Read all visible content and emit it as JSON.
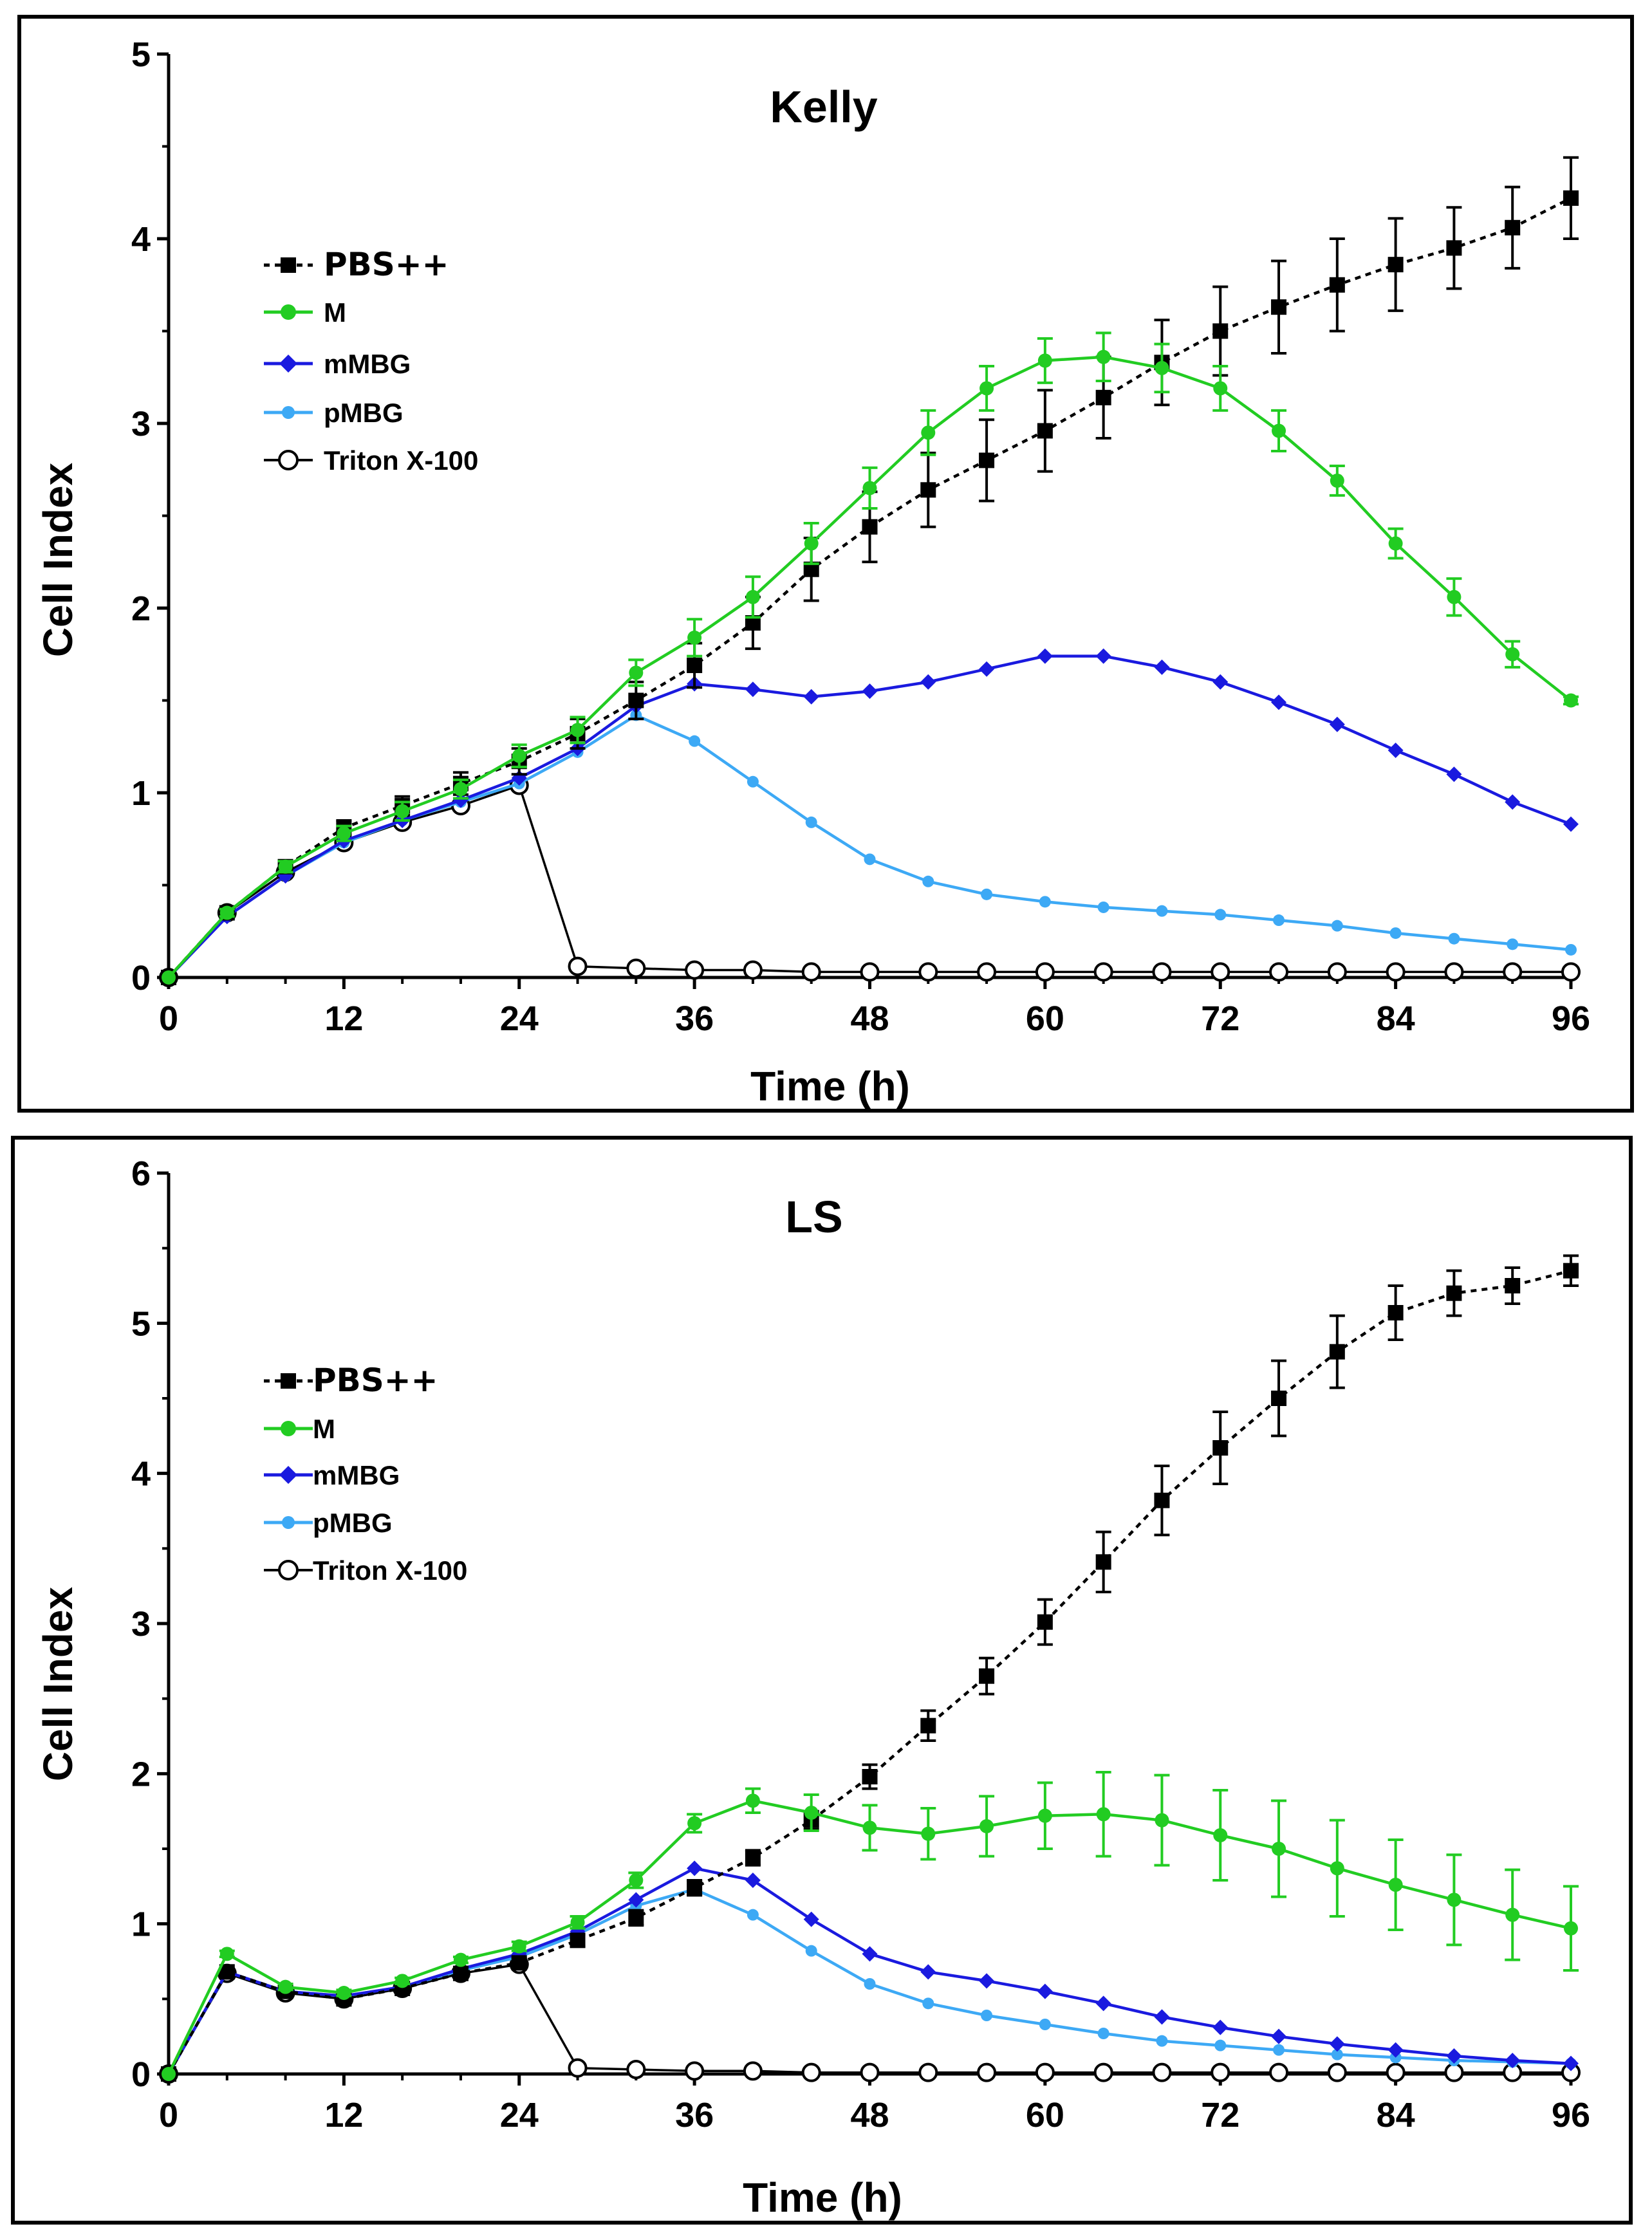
{
  "colors": {
    "PBS": "#000000",
    "M": "#22cc22",
    "mMBG": "#1a1adf",
    "pMBG": "#3da9f5",
    "Triton": "#000000"
  },
  "chart_data": [
    {
      "type": "line",
      "title": "Kelly",
      "xlabel": "Time (h)",
      "ylabel": "Cell Index",
      "xlim": [
        0,
        96
      ],
      "ylim": [
        0,
        5
      ],
      "xticks": [
        0,
        12,
        24,
        36,
        48,
        60,
        72,
        84,
        96
      ],
      "yticks": [
        0,
        1,
        2,
        3,
        4,
        5
      ],
      "legend_position": "upper-left",
      "x": [
        0,
        4,
        8,
        12,
        16,
        20,
        24,
        28,
        32,
        36,
        40,
        44,
        48,
        52,
        56,
        60,
        64,
        68,
        72,
        76,
        80,
        84,
        88,
        92,
        96
      ],
      "series": [
        {
          "name": "PBS++",
          "key": "PBS",
          "marker": "square",
          "dash": true,
          "values": [
            0,
            0.35,
            0.6,
            0.81,
            0.93,
            1.05,
            1.17,
            1.32,
            1.5,
            1.69,
            1.92,
            2.21,
            2.44,
            2.64,
            2.8,
            2.96,
            3.14,
            3.33,
            3.5,
            3.63,
            3.75,
            3.86,
            3.95,
            4.06,
            4.22
          ],
          "errors": [
            0,
            0.02,
            0.03,
            0.04,
            0.05,
            0.06,
            0.07,
            0.08,
            0.1,
            0.12,
            0.14,
            0.17,
            0.19,
            0.2,
            0.22,
            0.22,
            0.22,
            0.23,
            0.24,
            0.25,
            0.25,
            0.25,
            0.22,
            0.22,
            0.22
          ]
        },
        {
          "name": "M",
          "key": "M",
          "marker": "circle",
          "values": [
            0,
            0.35,
            0.6,
            0.78,
            0.9,
            1.02,
            1.2,
            1.34,
            1.65,
            1.84,
            2.06,
            2.35,
            2.65,
            2.95,
            3.19,
            3.34,
            3.36,
            3.3,
            3.19,
            2.96,
            2.69,
            2.35,
            2.06,
            1.75,
            1.5
          ],
          "errors": [
            0,
            0.02,
            0.03,
            0.04,
            0.05,
            0.05,
            0.06,
            0.07,
            0.07,
            0.1,
            0.11,
            0.11,
            0.11,
            0.12,
            0.12,
            0.12,
            0.13,
            0.13,
            0.12,
            0.11,
            0.08,
            0.08,
            0.1,
            0.07,
            0.02
          ]
        },
        {
          "name": "mMBG",
          "key": "mMBG",
          "marker": "diamond",
          "values": [
            0,
            0.33,
            0.55,
            0.74,
            0.85,
            0.96,
            1.08,
            1.24,
            1.47,
            1.59,
            1.56,
            1.52,
            1.55,
            1.6,
            1.67,
            1.74,
            1.74,
            1.68,
            1.6,
            1.49,
            1.37,
            1.23,
            1.1,
            0.95,
            0.83
          ]
        },
        {
          "name": "pMBG",
          "key": "pMBG",
          "marker": "small-circle",
          "values": [
            0,
            0.33,
            0.55,
            0.73,
            0.85,
            0.95,
            1.05,
            1.22,
            1.42,
            1.28,
            1.06,
            0.84,
            0.64,
            0.52,
            0.45,
            0.41,
            0.38,
            0.36,
            0.34,
            0.31,
            0.28,
            0.24,
            0.21,
            0.18,
            0.15
          ]
        },
        {
          "name": "Triton X-100",
          "key": "Triton",
          "marker": "open-circle",
          "values": [
            0,
            0.35,
            0.57,
            0.73,
            0.84,
            0.93,
            1.04,
            0.06,
            0.05,
            0.04,
            0.04,
            0.03,
            0.03,
            0.03,
            0.03,
            0.03,
            0.03,
            0.03,
            0.03,
            0.03,
            0.03,
            0.03,
            0.03,
            0.03,
            0.03
          ]
        }
      ]
    },
    {
      "type": "line",
      "title": "LS",
      "xlabel": "Time (h)",
      "ylabel": "Cell Index",
      "xlim": [
        0,
        96
      ],
      "ylim": [
        0,
        6
      ],
      "xticks": [
        0,
        12,
        24,
        36,
        48,
        60,
        72,
        84,
        96
      ],
      "yticks": [
        0,
        1,
        2,
        3,
        4,
        5,
        6
      ],
      "legend_position": "middle-left",
      "x": [
        0,
        4,
        8,
        12,
        16,
        20,
        24,
        28,
        32,
        36,
        40,
        44,
        48,
        52,
        56,
        60,
        64,
        68,
        72,
        76,
        80,
        84,
        88,
        92,
        96
      ],
      "series": [
        {
          "name": "PBS++",
          "key": "PBS",
          "marker": "square",
          "dash": true,
          "values": [
            0,
            0.68,
            0.55,
            0.5,
            0.57,
            0.67,
            0.74,
            0.89,
            1.04,
            1.24,
            1.44,
            1.69,
            1.98,
            2.32,
            2.65,
            3.01,
            3.41,
            3.82,
            4.17,
            4.5,
            4.81,
            5.07,
            5.2,
            5.25,
            5.35
          ],
          "errors": [
            0,
            0.02,
            0.02,
            0.02,
            0.02,
            0.02,
            0.03,
            0.04,
            0.05,
            0.05,
            0.05,
            0.06,
            0.08,
            0.1,
            0.12,
            0.15,
            0.2,
            0.23,
            0.24,
            0.25,
            0.24,
            0.18,
            0.15,
            0.12,
            0.1
          ]
        },
        {
          "name": "M",
          "key": "M",
          "marker": "circle",
          "values": [
            0,
            0.8,
            0.58,
            0.54,
            0.62,
            0.76,
            0.85,
            1.01,
            1.29,
            1.67,
            1.82,
            1.74,
            1.64,
            1.6,
            1.65,
            1.72,
            1.73,
            1.69,
            1.59,
            1.5,
            1.37,
            1.26,
            1.16,
            1.06,
            0.97
          ],
          "errors": [
            0,
            0.02,
            0.02,
            0.02,
            0.02,
            0.02,
            0.03,
            0.04,
            0.05,
            0.06,
            0.08,
            0.12,
            0.15,
            0.17,
            0.2,
            0.22,
            0.28,
            0.3,
            0.3,
            0.32,
            0.32,
            0.3,
            0.3,
            0.3,
            0.28
          ]
        },
        {
          "name": "mMBG",
          "key": "mMBG",
          "marker": "diamond",
          "values": [
            0,
            0.68,
            0.55,
            0.52,
            0.58,
            0.7,
            0.8,
            0.95,
            1.16,
            1.37,
            1.29,
            1.03,
            0.8,
            0.68,
            0.62,
            0.55,
            0.47,
            0.38,
            0.31,
            0.25,
            0.2,
            0.16,
            0.12,
            0.09,
            0.07
          ]
        },
        {
          "name": "pMBG",
          "key": "pMBG",
          "marker": "small-circle",
          "values": [
            0,
            0.68,
            0.55,
            0.52,
            0.58,
            0.69,
            0.78,
            0.93,
            1.12,
            1.23,
            1.06,
            0.82,
            0.6,
            0.47,
            0.39,
            0.33,
            0.27,
            0.22,
            0.19,
            0.16,
            0.13,
            0.11,
            0.09,
            0.08,
            0.07
          ]
        },
        {
          "name": "Triton X-100",
          "key": "Triton",
          "marker": "open-circle",
          "values": [
            0,
            0.67,
            0.54,
            0.5,
            0.57,
            0.67,
            0.73,
            0.04,
            0.03,
            0.02,
            0.02,
            0.01,
            0.01,
            0.01,
            0.01,
            0.01,
            0.01,
            0.01,
            0.01,
            0.01,
            0.01,
            0.01,
            0.01,
            0.01,
            0.01
          ]
        }
      ]
    }
  ]
}
